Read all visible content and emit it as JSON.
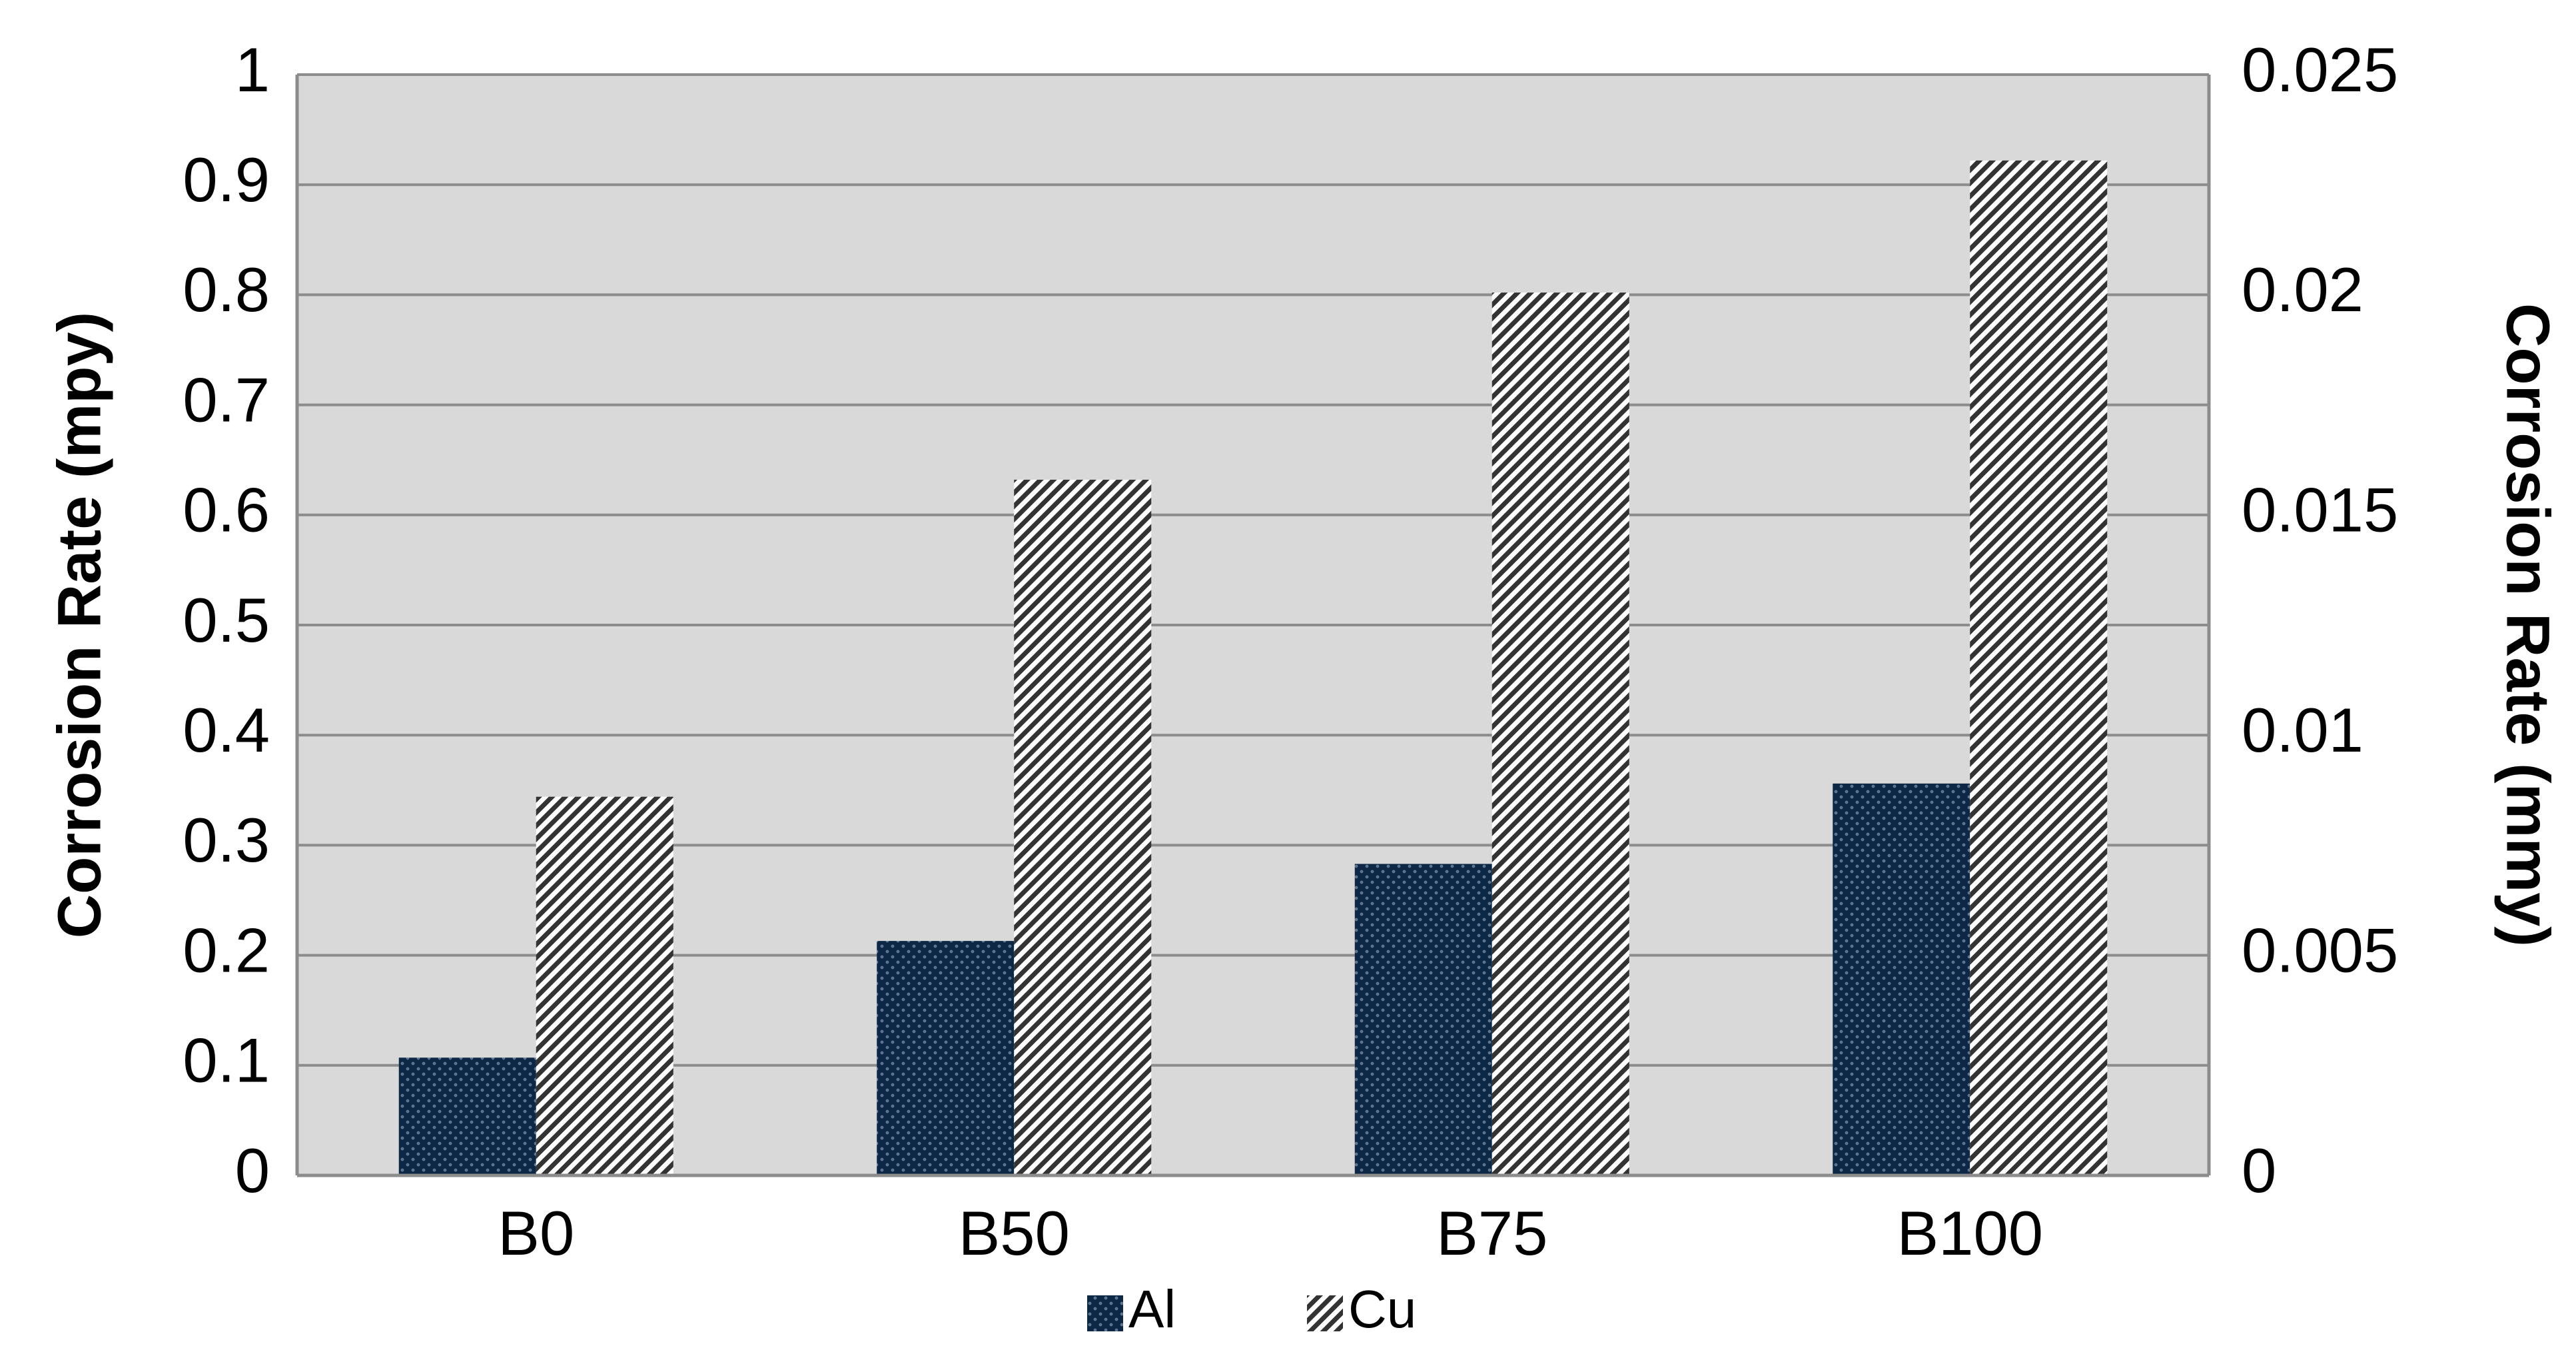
{
  "chart_data": {
    "type": "bar",
    "title": "",
    "categories": [
      "B0",
      "B50",
      "B75",
      "B100"
    ],
    "series": [
      {
        "name": "Al",
        "values": [
          0.107,
          0.213,
          0.283,
          0.356
        ]
      },
      {
        "name": "Cu",
        "values": [
          0.344,
          0.632,
          0.802,
          0.922
        ]
      }
    ],
    "ylabel": "Corrosion Rate (mpy)",
    "ylabel_right": "Corrosion Rate (mmy)",
    "ylim": [
      0,
      1
    ],
    "ylim_right": [
      0,
      0.025
    ],
    "yticks": [
      "0",
      "0.1",
      "0.2",
      "0.3",
      "0.4",
      "0.5",
      "0.6",
      "0.7",
      "0.8",
      "0.9",
      "1"
    ],
    "yticks_right": [
      "0",
      "0.005",
      "0.01",
      "0.015",
      "0.02",
      "0.025"
    ],
    "grid": true,
    "legend_position": "bottom-center",
    "colors": {
      "al": "#0d2747",
      "al_dots": "#5f7590",
      "cu_bg": "#ffffff",
      "cu_hatch": "#333333",
      "plot_bg": "#d9d9d9",
      "grid": "#8c8c8c"
    }
  }
}
